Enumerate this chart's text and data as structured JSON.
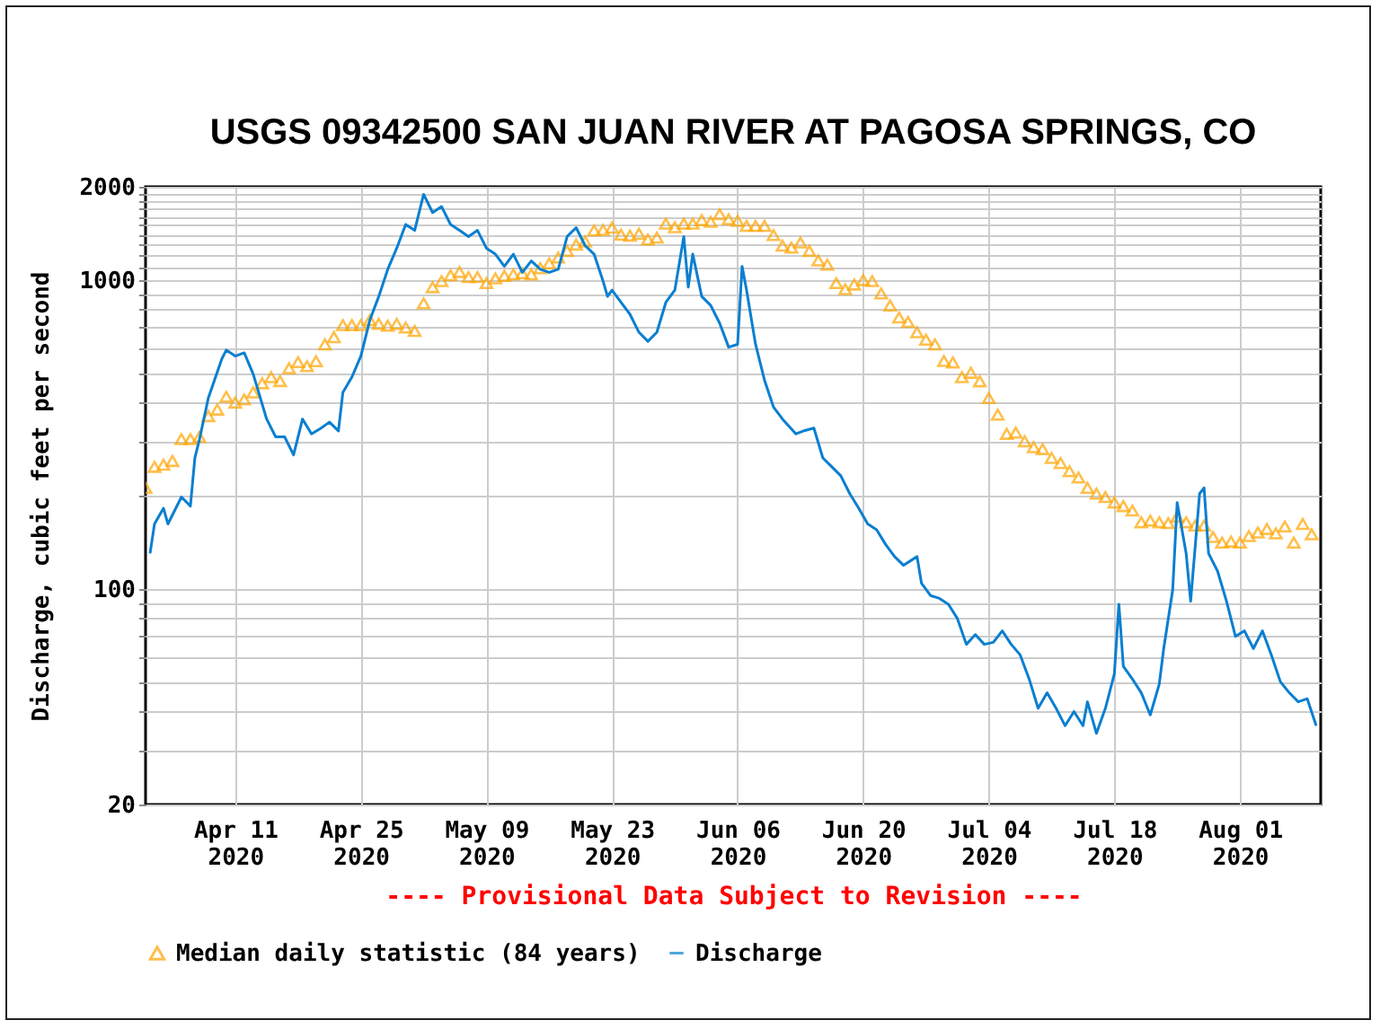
{
  "chart_data": {
    "type": "line",
    "title": "USGS 09342500 SAN JUAN RIVER AT PAGOSA SPRINGS, CO",
    "ylabel": "Discharge, cubic feet per second",
    "annotations": [
      "---- Provisional Data Subject to Revision ----"
    ],
    "log": true,
    "grid": true,
    "legend": "bottom",
    "xlim": [
      "2020-04-01",
      "2020-08-10"
    ],
    "xticks": [
      {
        "value": "2020-04-11",
        "label": "Apr 11\n2020"
      },
      {
        "value": "2020-04-25",
        "label": "Apr 25\n2020"
      },
      {
        "value": "2020-05-09",
        "label": "May 09\n2020"
      },
      {
        "value": "2020-05-23",
        "label": "May 23\n2020"
      },
      {
        "value": "2020-06-06",
        "label": "Jun 06\n2020"
      },
      {
        "value": "2020-06-20",
        "label": "Jun 20\n2020"
      },
      {
        "value": "2020-07-04",
        "label": "Jul 04\n2020"
      },
      {
        "value": "2020-07-18",
        "label": "Jul 18\n2020"
      },
      {
        "value": "2020-08-01",
        "label": "Aug 01\n2020"
      }
    ],
    "ylim": [
      20,
      2000
    ],
    "yticks": [
      20,
      {
        "value": 30,
        "label": null
      },
      {
        "value": 40,
        "label": null
      },
      {
        "value": 50,
        "label": null
      },
      {
        "value": 60,
        "label": null
      },
      {
        "value": 70,
        "label": null
      },
      {
        "value": 80,
        "label": null
      },
      {
        "value": 90,
        "label": null
      },
      100,
      {
        "value": 200,
        "label": null
      },
      {
        "value": 300,
        "label": null
      },
      {
        "value": 400,
        "label": null
      },
      {
        "value": 500,
        "label": null
      },
      {
        "value": 600,
        "label": null
      },
      {
        "value": 700,
        "label": null
      },
      {
        "value": 800,
        "label": null
      },
      {
        "value": 900,
        "label": null
      },
      1000,
      {
        "value": 1100,
        "label": null
      },
      {
        "value": 1200,
        "label": null
      },
      {
        "value": 1300,
        "label": null
      },
      {
        "value": 1400,
        "label": null
      },
      {
        "value": 1500,
        "label": null
      },
      {
        "value": 1600,
        "label": null
      },
      {
        "value": 1700,
        "label": null
      },
      {
        "value": 1800,
        "label": null
      },
      {
        "value": 1900,
        "label": null
      },
      2000
    ],
    "series": [
      {
        "name": "Median daily statistic (84 years)",
        "type": "scatter",
        "marker": "triangle",
        "color": "#ffa500",
        "x": [
          "2020-04-01",
          "2020-04-02",
          "2020-04-03",
          "2020-04-04",
          "2020-04-05",
          "2020-04-06",
          "2020-04-07",
          "2020-04-08",
          "2020-04-09",
          "2020-04-10",
          "2020-04-11",
          "2020-04-12",
          "2020-04-13",
          "2020-04-14",
          "2020-04-15",
          "2020-04-16",
          "2020-04-17",
          "2020-04-18",
          "2020-04-19",
          "2020-04-20",
          "2020-04-21",
          "2020-04-22",
          "2020-04-23",
          "2020-04-24",
          "2020-04-25",
          "2020-04-26",
          "2020-04-27",
          "2020-04-28",
          "2020-04-29",
          "2020-04-30",
          "2020-05-01",
          "2020-05-02",
          "2020-05-03",
          "2020-05-04",
          "2020-05-05",
          "2020-05-06",
          "2020-05-07",
          "2020-05-08",
          "2020-05-09",
          "2020-05-10",
          "2020-05-11",
          "2020-05-12",
          "2020-05-13",
          "2020-05-14",
          "2020-05-15",
          "2020-05-16",
          "2020-05-17",
          "2020-05-18",
          "2020-05-19",
          "2020-05-20",
          "2020-05-21",
          "2020-05-22",
          "2020-05-23",
          "2020-05-24",
          "2020-05-25",
          "2020-05-26",
          "2020-05-27",
          "2020-05-28",
          "2020-05-29",
          "2020-05-30",
          "2020-05-31",
          "2020-06-01",
          "2020-06-02",
          "2020-06-03",
          "2020-06-04",
          "2020-06-05",
          "2020-06-06",
          "2020-06-07",
          "2020-06-08",
          "2020-06-09",
          "2020-06-10",
          "2020-06-11",
          "2020-06-12",
          "2020-06-13",
          "2020-06-14",
          "2020-06-15",
          "2020-06-16",
          "2020-06-17",
          "2020-06-18",
          "2020-06-19",
          "2020-06-20",
          "2020-06-21",
          "2020-06-22",
          "2020-06-23",
          "2020-06-24",
          "2020-06-25",
          "2020-06-26",
          "2020-06-27",
          "2020-06-28",
          "2020-06-29",
          "2020-06-30",
          "2020-07-01",
          "2020-07-02",
          "2020-07-03",
          "2020-07-04",
          "2020-07-05",
          "2020-07-06",
          "2020-07-07",
          "2020-07-08",
          "2020-07-09",
          "2020-07-10",
          "2020-07-11",
          "2020-07-12",
          "2020-07-13",
          "2020-07-14",
          "2020-07-15",
          "2020-07-16",
          "2020-07-17",
          "2020-07-18",
          "2020-07-19",
          "2020-07-20",
          "2020-07-21",
          "2020-07-22",
          "2020-07-23",
          "2020-07-24",
          "2020-07-25",
          "2020-07-26",
          "2020-07-27",
          "2020-07-28",
          "2020-07-29",
          "2020-07-30",
          "2020-07-31",
          "2020-08-01",
          "2020-08-02",
          "2020-08-03",
          "2020-08-04",
          "2020-08-05",
          "2020-08-06",
          "2020-08-07",
          "2020-08-08",
          "2020-08-09"
        ],
        "values": [
          212,
          248,
          252,
          259,
          305,
          305,
          310,
          362,
          380,
          418,
          400,
          410,
          432,
          462,
          484,
          470,
          517,
          541,
          525,
          545,
          618,
          652,
          713,
          713,
          713,
          740,
          720,
          710,
          720,
          700,
          683,
          839,
          946,
          990,
          1034,
          1060,
          1020,
          1020,
          975,
          1010,
          1030,
          1040,
          1050,
          1040,
          1090,
          1130,
          1180,
          1240,
          1300,
          1330,
          1445,
          1450,
          1475,
          1400,
          1390,
          1410,
          1350,
          1370,
          1520,
          1480,
          1520,
          1520,
          1560,
          1540,
          1630,
          1570,
          1550,
          1495,
          1495,
          1495,
          1395,
          1290,
          1270,
          1320,
          1240,
          1155,
          1120,
          975,
          932,
          965,
          998,
          990,
          903,
          826,
          755,
          730,
          676,
          640,
          618,
          546,
          540,
          484,
          500,
          469,
          414,
          366,
          317,
          320,
          300,
          287,
          283,
          265,
          255,
          240,
          229,
          212,
          203,
          198,
          190,
          185,
          179,
          164,
          166,
          164,
          163,
          171,
          164,
          160,
          160,
          147,
          141,
          142,
          141,
          148,
          152,
          156,
          151,
          159,
          141,
          162,
          150
        ]
      },
      {
        "name": "Discharge",
        "color": "#0a7fd0",
        "x": [
          "2020-04-01T12:00",
          "2020-04-02",
          "2020-04-03",
          "2020-04-03T12:00",
          "2020-04-05",
          "2020-04-06",
          "2020-04-06T12:00",
          "2020-04-07",
          "2020-04-08",
          "2020-04-09T12:00",
          "2020-04-10",
          "2020-04-11",
          "2020-04-12",
          "2020-04-13",
          "2020-04-14T12:00",
          "2020-04-15T12:00",
          "2020-04-16T12:00",
          "2020-04-17T12:00",
          "2020-04-18T12:00",
          "2020-04-19T12:00",
          "2020-04-20T12:00",
          "2020-04-21T12:00",
          "2020-04-22T12:00",
          "2020-04-23",
          "2020-04-24",
          "2020-04-25",
          "2020-04-26",
          "2020-04-27",
          "2020-04-28",
          "2020-04-29",
          "2020-04-30",
          "2020-05-01",
          "2020-05-02",
          "2020-05-03",
          "2020-05-04",
          "2020-05-05",
          "2020-05-06",
          "2020-05-07",
          "2020-05-08",
          "2020-05-09",
          "2020-05-10",
          "2020-05-11",
          "2020-05-12",
          "2020-05-13",
          "2020-05-14",
          "2020-05-15",
          "2020-05-16",
          "2020-05-17",
          "2020-05-18",
          "2020-05-19",
          "2020-05-20",
          "2020-05-21",
          "2020-05-22",
          "2020-05-22T12:00",
          "2020-05-23",
          "2020-05-24",
          "2020-05-25",
          "2020-05-26",
          "2020-05-27",
          "2020-05-28",
          "2020-05-29",
          "2020-05-30",
          "2020-05-31",
          "2020-05-31T12:00",
          "2020-06-01",
          "2020-06-02",
          "2020-06-03",
          "2020-06-04",
          "2020-06-05",
          "2020-06-06",
          "2020-06-06T12:00",
          "2020-06-07",
          "2020-06-08",
          "2020-06-09",
          "2020-06-10",
          "2020-06-11",
          "2020-06-12T12:00",
          "2020-06-13T12:00",
          "2020-06-14T12:00",
          "2020-06-15T12:00",
          "2020-06-16T12:00",
          "2020-06-17T12:00",
          "2020-06-18T12:00",
          "2020-06-19T12:00",
          "2020-06-20T12:00",
          "2020-06-21T12:00",
          "2020-06-22T12:00",
          "2020-06-23T12:00",
          "2020-06-24T12:00",
          "2020-06-26",
          "2020-06-26T12:00",
          "2020-06-27T12:00",
          "2020-06-28T12:00",
          "2020-06-29T12:00",
          "2020-06-30T12:00",
          "2020-07-01T12:00",
          "2020-07-02T12:00",
          "2020-07-03T12:00",
          "2020-07-04T12:00",
          "2020-07-05T12:00",
          "2020-07-06T12:00",
          "2020-07-07T12:00",
          "2020-07-08T12:00",
          "2020-07-09T12:00",
          "2020-07-10T12:00",
          "2020-07-11T12:00",
          "2020-07-12T12:00",
          "2020-07-13T12:00",
          "2020-07-14T12:00",
          "2020-07-15",
          "2020-07-16",
          "2020-07-17",
          "2020-07-18",
          "2020-07-18T12:00",
          "2020-07-19",
          "2020-07-20",
          "2020-07-21",
          "2020-07-22",
          "2020-07-23",
          "2020-07-23T12:00",
          "2020-07-24T12:00",
          "2020-07-25",
          "2020-07-26",
          "2020-07-26T12:00",
          "2020-07-27T12:00",
          "2020-07-28",
          "2020-07-28T12:00",
          "2020-07-29T12:00",
          "2020-07-30T12:00",
          "2020-07-31T12:00",
          "2020-08-01T12:00",
          "2020-08-02T12:00",
          "2020-08-03T12:00",
          "2020-08-04T12:00",
          "2020-08-05T12:00",
          "2020-08-06T12:00",
          "2020-08-07T12:00",
          "2020-08-08T12:00",
          "2020-08-09T12:00"
        ],
        "values": [
          130,
          162,
          182,
          162,
          198,
          185,
          265,
          303,
          414,
          554,
          592,
          566,
          580,
          495,
          354,
          310,
          310,
          271,
          354,
          317,
          330,
          346,
          324,
          432,
          484,
          566,
          740,
          883,
          1081,
          1265,
          1510,
          1445,
          1890,
          1650,
          1725,
          1510,
          1445,
          1380,
          1445,
          1265,
          1210,
          1105,
          1210,
          1056,
          1150,
          1081,
          1056,
          1081,
          1380,
          1475,
          1290,
          1210,
          990,
          883,
          925,
          845,
          773,
          676,
          632,
          676,
          845,
          925,
          1380,
          946,
          1210,
          883,
          826,
          723,
          605,
          618,
          1105,
          925,
          618,
          473,
          387,
          354,
          317,
          325,
          331,
          265,
          248,
          232,
          203,
          182,
          162,
          155,
          139,
          127,
          119,
          127,
          104,
          95,
          93,
          89,
          80,
          66,
          71,
          66,
          67,
          73,
          66,
          61,
          51,
          41,
          46,
          41,
          36,
          40,
          36,
          43,
          34,
          41,
          53,
          89,
          56,
          51,
          46,
          39,
          49,
          64,
          99,
          190,
          130,
          91,
          203,
          212,
          130,
          114,
          91,
          70,
          73,
          64,
          73,
          61,
          50,
          46,
          43,
          44,
          36
        ]
      }
    ]
  }
}
